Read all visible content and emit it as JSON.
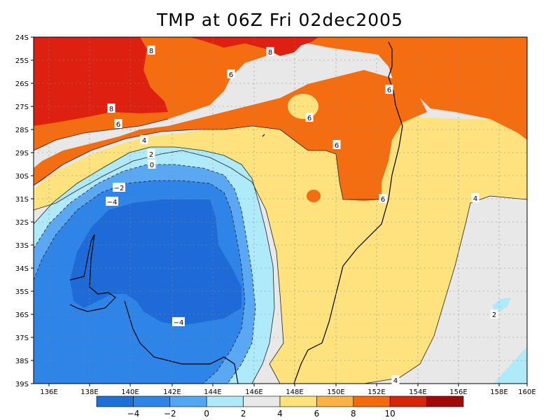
{
  "title": "TMP at 06Z Fri 02dec2005",
  "lat_labels": [
    "24S",
    "25S",
    "26S",
    "27S",
    "28S",
    "29S",
    "30S",
    "31S",
    "32S",
    "33S",
    "34S",
    "35S",
    "36S",
    "37S",
    "38S",
    "39S"
  ],
  "lon_labels": [
    "136E",
    "138E",
    "140E",
    "142E",
    "144E",
    "146E",
    "148E",
    "150E",
    "152E",
    "154E",
    "156E",
    "158E",
    "160E"
  ],
  "contour_labels": [
    "8",
    "8",
    "8",
    "6",
    "6",
    "6",
    "6",
    "6",
    "6",
    "4",
    "2",
    "0",
    "−2",
    "−4",
    "−4",
    "4",
    "2",
    "4"
  ],
  "colorbar": {
    "colors": [
      "#1e6fd6",
      "#2f84e8",
      "#52a6f4",
      "#aee9fa",
      "#e8e8e8",
      "#fce27a",
      "#fbb244",
      "#f46a0a",
      "#d8240a",
      "#a00a06"
    ],
    "labels": [
      "−4",
      "−2",
      "0",
      "2",
      "4",
      "6",
      "8",
      "10"
    ]
  },
  "region_colors": {
    "red": "#dd2010",
    "orange": "#f46d10",
    "yellow": "#fde27d",
    "gray": "#e8e8e8",
    "lightblue": "#aeeafa",
    "midblue": "#5aa8f4",
    "blue": "#2f84e8",
    "darkblue": "#1e6ad6"
  }
}
